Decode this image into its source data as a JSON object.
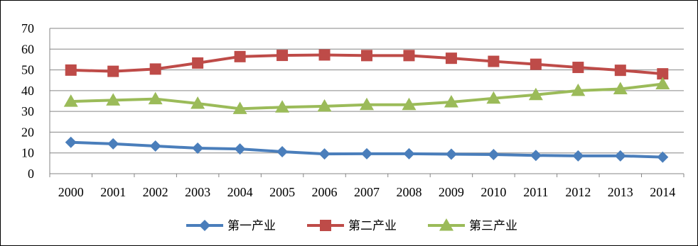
{
  "chart_data": {
    "type": "line",
    "title": "",
    "xlabel": "",
    "ylabel": "",
    "categories": [
      "2000",
      "2001",
      "2002",
      "2003",
      "2004",
      "2005",
      "2006",
      "2007",
      "2008",
      "2009",
      "2010",
      "2011",
      "2012",
      "2013",
      "2014"
    ],
    "ylim": [
      0,
      70
    ],
    "yticks": [
      0,
      10,
      20,
      30,
      40,
      50,
      60,
      70
    ],
    "grid": true,
    "legend_position": "bottom",
    "series": [
      {
        "name": "第一产业",
        "color": "#4A7EBB",
        "marker": "diamond",
        "values": [
          15.1,
          14.4,
          13.3,
          12.3,
          11.9,
          10.6,
          9.5,
          9.6,
          9.6,
          9.4,
          9.2,
          8.8,
          8.6,
          8.6,
          8.0
        ]
      },
      {
        "name": "第二产业",
        "color": "#BE4B48",
        "marker": "square",
        "values": [
          49.9,
          49.3,
          50.4,
          53.3,
          56.4,
          57.0,
          57.2,
          56.9,
          56.9,
          55.6,
          54.1,
          52.7,
          51.2,
          49.8,
          48.1
        ]
      },
      {
        "name": "第三产业",
        "color": "#9BBB59",
        "marker": "triangle",
        "values": [
          34.8,
          35.4,
          36.0,
          33.8,
          31.3,
          32.0,
          32.5,
          33.2,
          33.2,
          34.5,
          36.3,
          38.0,
          40.0,
          40.8,
          43.2
        ]
      }
    ]
  }
}
